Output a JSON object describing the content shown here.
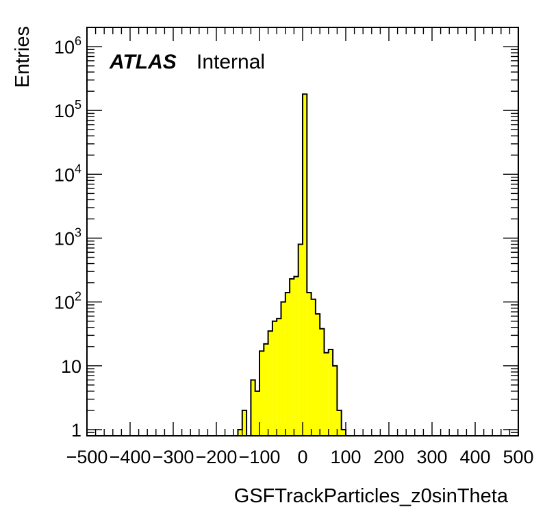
{
  "chart_data": {
    "type": "histogram",
    "title": "",
    "xlabel": "GSFTrackParticles_z0sinTheta",
    "ylabel": "Entries",
    "xlim": [
      -500,
      500
    ],
    "ylim": [
      0.8,
      2000000
    ],
    "yscale": "log",
    "grid": false,
    "legend": "none",
    "annotation": {
      "atlas": "ATLAS",
      "status": "Internal"
    },
    "colors": {
      "fill": "#ffff00",
      "line": "#000000"
    },
    "bin_width": 10,
    "x_ticks": [
      {
        "value": -500,
        "label": "−500"
      },
      {
        "value": -400,
        "label": "−400"
      },
      {
        "value": -300,
        "label": "−300"
      },
      {
        "value": -200,
        "label": "−200"
      },
      {
        "value": -100,
        "label": "−100"
      },
      {
        "value": 0,
        "label": "0"
      },
      {
        "value": 100,
        "label": "100"
      },
      {
        "value": 200,
        "label": "200"
      },
      {
        "value": 300,
        "label": "300"
      },
      {
        "value": 400,
        "label": "400"
      },
      {
        "value": 500,
        "label": "500"
      }
    ],
    "y_ticks": [
      {
        "value": 1,
        "base": "1",
        "exp": ""
      },
      {
        "value": 10,
        "base": "10",
        "exp": ""
      },
      {
        "value": 100,
        "base": "10",
        "exp": "2"
      },
      {
        "value": 1000,
        "base": "10",
        "exp": "3"
      },
      {
        "value": 10000,
        "base": "10",
        "exp": "4"
      },
      {
        "value": 100000,
        "base": "10",
        "exp": "5"
      },
      {
        "value": 1000000,
        "base": "10",
        "exp": "6"
      }
    ],
    "bins": [
      {
        "x": -150,
        "y": 1
      },
      {
        "x": -140,
        "y": 2
      },
      {
        "x": -130,
        "y": 0
      },
      {
        "x": -120,
        "y": 6
      },
      {
        "x": -110,
        "y": 4
      },
      {
        "x": -100,
        "y": 17
      },
      {
        "x": -90,
        "y": 22
      },
      {
        "x": -80,
        "y": 35
      },
      {
        "x": -70,
        "y": 50
      },
      {
        "x": -60,
        "y": 55
      },
      {
        "x": -50,
        "y": 100
      },
      {
        "x": -40,
        "y": 140
      },
      {
        "x": -30,
        "y": 230
      },
      {
        "x": -20,
        "y": 250
      },
      {
        "x": -10,
        "y": 800
      },
      {
        "x": 0,
        "y": 180000
      },
      {
        "x": 10,
        "y": 140
      },
      {
        "x": 20,
        "y": 110
      },
      {
        "x": 30,
        "y": 65
      },
      {
        "x": 40,
        "y": 38
      },
      {
        "x": 50,
        "y": 16
      },
      {
        "x": 60,
        "y": 18
      },
      {
        "x": 70,
        "y": 10
      },
      {
        "x": 80,
        "y": 2
      },
      {
        "x": 90,
        "y": 1
      }
    ]
  }
}
